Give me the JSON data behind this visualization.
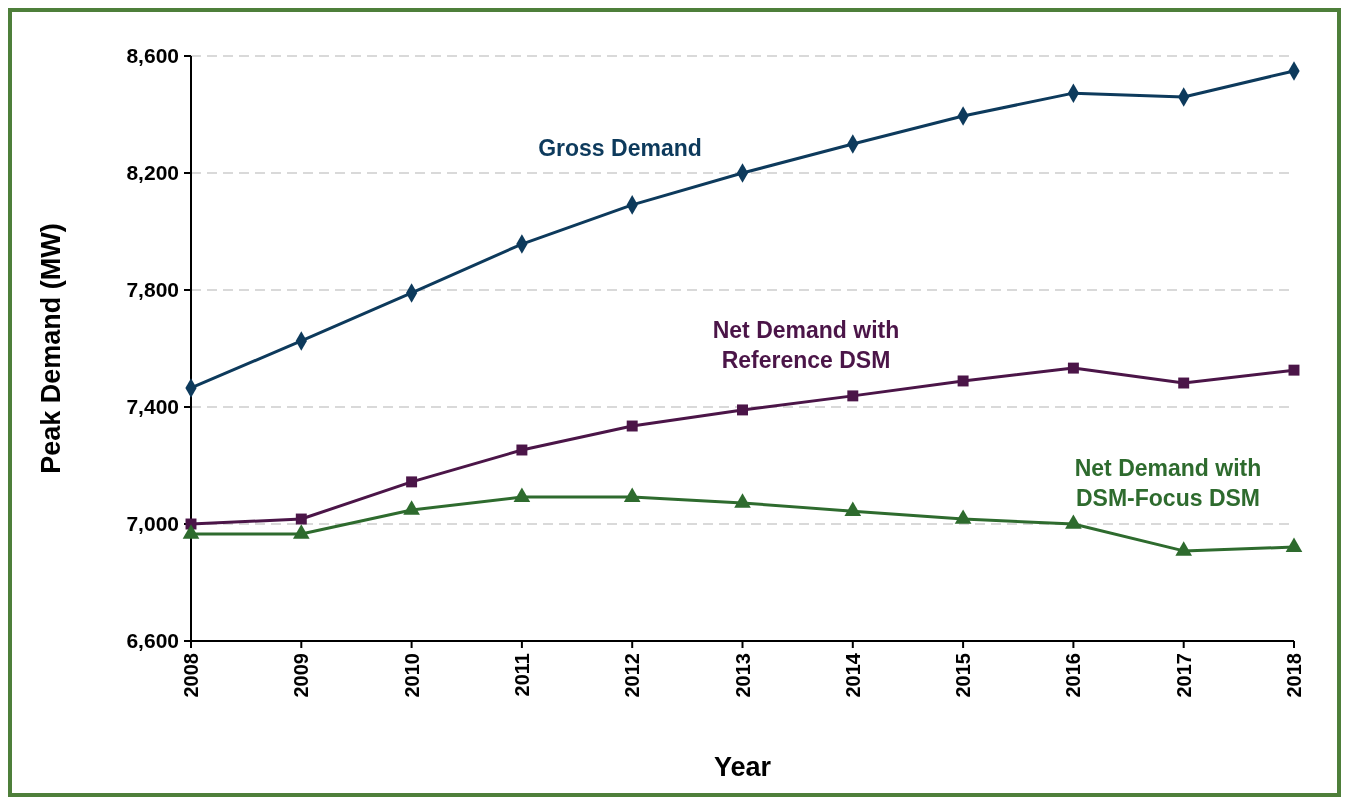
{
  "chart_data": {
    "type": "line",
    "xlabel": "Year",
    "ylabel": "Peak Demand (MW)",
    "x": [
      2008,
      2009,
      2010,
      2011,
      2012,
      2013,
      2014,
      2015,
      2016,
      2017,
      2018
    ],
    "xlim": [
      2008,
      2018
    ],
    "xticks": [
      2008,
      2009,
      2010,
      2011,
      2012,
      2013,
      2014,
      2015,
      2016,
      2017,
      2018
    ],
    "ylim": [
      6600,
      8600
    ],
    "yticks": [
      {
        "value": 6600,
        "label": "6,600"
      },
      {
        "value": 7000,
        "label": "7,000"
      },
      {
        "value": 7400,
        "label": "7,400"
      },
      {
        "value": 7800,
        "label": "7,800"
      },
      {
        "value": 8200,
        "label": "8,200"
      },
      {
        "value": 8600,
        "label": "8,600"
      }
    ],
    "grid": "y",
    "line_style": "solid",
    "series": [
      {
        "name": "Gross Demand",
        "color": "#0d3a5c",
        "marker": "diamond",
        "values": [
          7465,
          7626,
          7790,
          7957,
          8091,
          8200,
          8299,
          8395,
          8473,
          8460,
          8549
        ]
      },
      {
        "name": "Net Demand with Reference DSM",
        "color": "#4b1548",
        "marker": "square",
        "values": [
          7000,
          7017,
          7144,
          7253,
          7335,
          7390,
          7438,
          7489,
          7533,
          7482,
          7526
        ]
      },
      {
        "name": "Net Demand with DSM-Focus DSM",
        "color": "#2e6b2e",
        "marker": "triangle",
        "values": [
          6966,
          6966,
          7048,
          7092,
          7092,
          7072,
          7044,
          7017,
          7000,
          6908,
          6921
        ]
      }
    ]
  }
}
